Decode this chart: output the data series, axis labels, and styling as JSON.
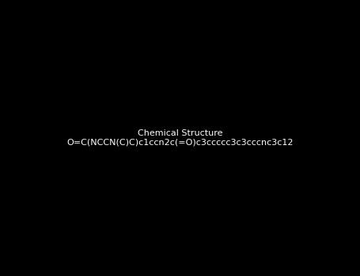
{
  "molecule_smiles": "O=C(NCCN(C)C)c1ccn2c(=O)c3ccccc3c3cccnc3c12",
  "title": "",
  "background_color": "#000000",
  "figsize": [
    4.55,
    3.5
  ],
  "dpi": 100
}
